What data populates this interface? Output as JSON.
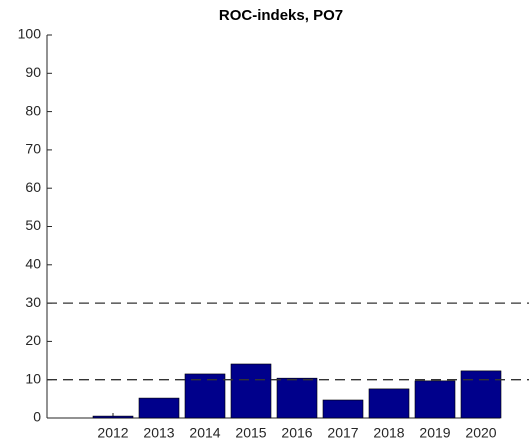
{
  "chart_data": {
    "type": "bar",
    "title": "ROC-indeks, PO7",
    "categories": [
      "2012",
      "2013",
      "2014",
      "2015",
      "2016",
      "2017",
      "2018",
      "2019",
      "2020"
    ],
    "values": [
      0.5,
      5.2,
      11.5,
      14.1,
      10.4,
      4.7,
      7.6,
      9.7,
      12.3
    ],
    "color": "#00008b",
    "ylim": [
      0,
      100
    ],
    "yticks": [
      0,
      10,
      20,
      30,
      40,
      50,
      60,
      70,
      80,
      90,
      100
    ],
    "reference_lines": [
      30,
      10
    ]
  }
}
